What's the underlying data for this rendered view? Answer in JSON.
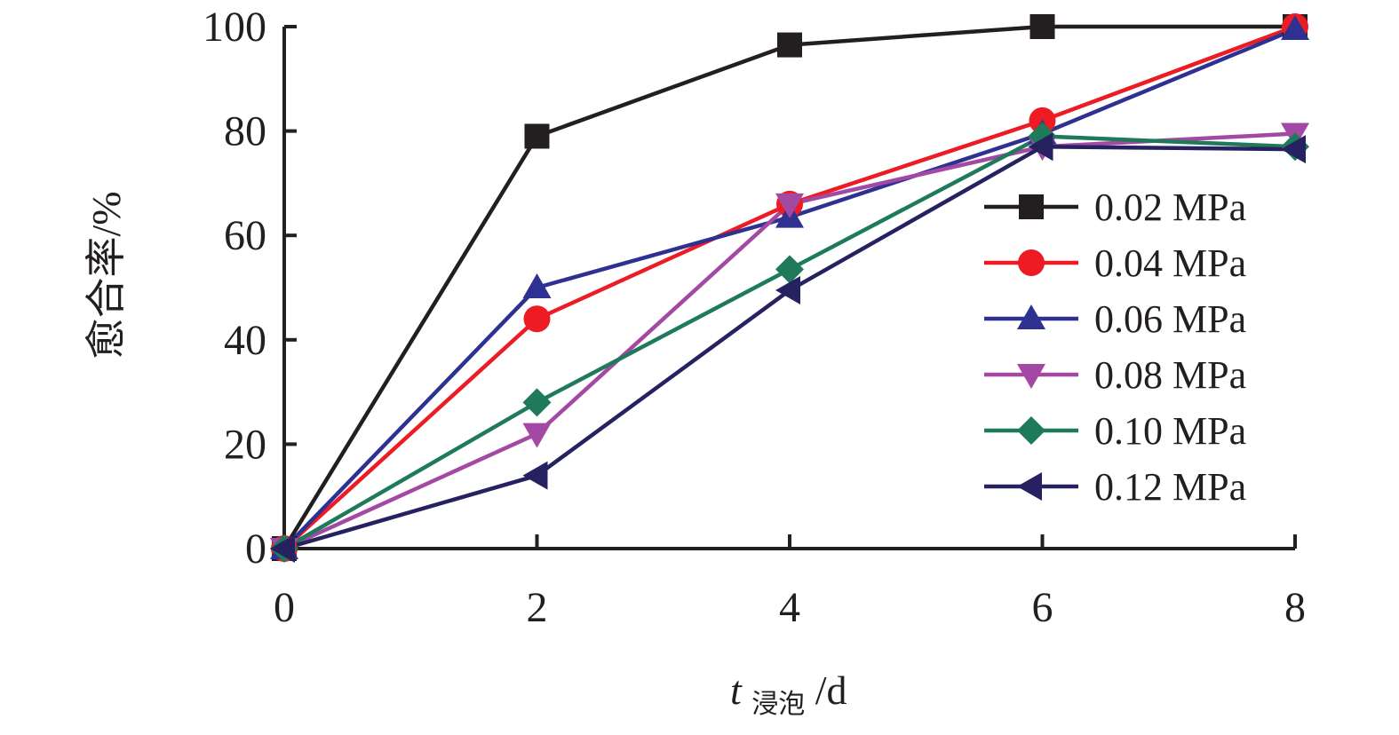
{
  "chart_data": {
    "type": "line",
    "xlabel_main": "t",
    "xlabel_sub": "浸泡",
    "xlabel_unit": "/d",
    "ylabel": "愈合率/%",
    "x": [
      0,
      2,
      4,
      6,
      8
    ],
    "xlim": [
      0,
      8
    ],
    "ylim": [
      0,
      100
    ],
    "xticks": [
      0,
      2,
      4,
      6,
      8
    ],
    "yticks": [
      0,
      20,
      40,
      60,
      80,
      100
    ],
    "grid": false,
    "legend_position": "right",
    "series": [
      {
        "name": "0.02 MPa",
        "values": [
          0,
          79,
          96.5,
          100,
          100
        ],
        "color": "#231f20",
        "marker": "square"
      },
      {
        "name": "0.04 MPa",
        "values": [
          0,
          44,
          66,
          82,
          100
        ],
        "color": "#ed1c24",
        "marker": "circle"
      },
      {
        "name": "0.06 MPa",
        "values": [
          0,
          50,
          63.5,
          79.5,
          99.5
        ],
        "color": "#2e3192",
        "marker": "triangle-up"
      },
      {
        "name": "0.08 MPa",
        "values": [
          0,
          22,
          66,
          77,
          79.5
        ],
        "color": "#a349a4",
        "marker": "triangle-down"
      },
      {
        "name": "0.10 MPa",
        "values": [
          0,
          28,
          53.5,
          79,
          77
        ],
        "color": "#1f7a5c",
        "marker": "diamond"
      },
      {
        "name": "0.12 MPa",
        "values": [
          0,
          14,
          49.5,
          77,
          76.5
        ],
        "color": "#262261",
        "marker": "triangle-left"
      }
    ]
  }
}
